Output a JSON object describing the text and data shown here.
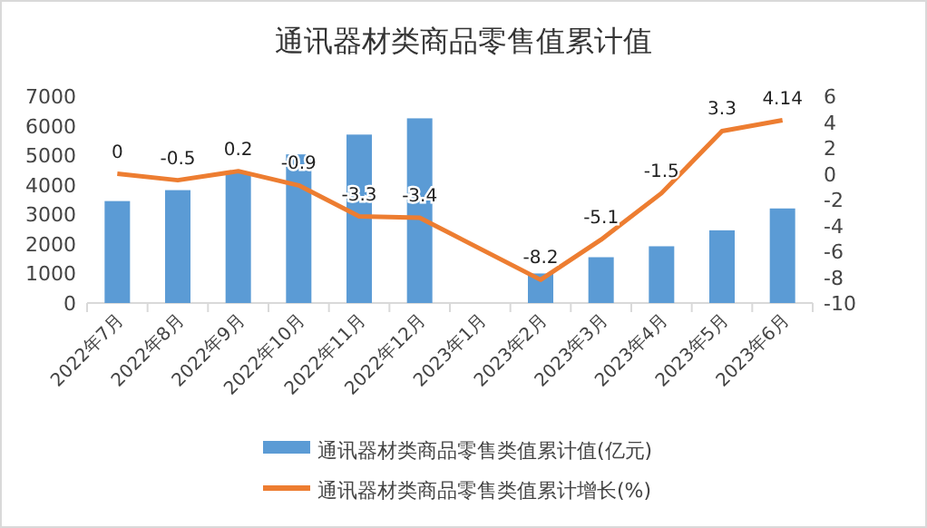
{
  "chart_data": {
    "type": "bar",
    "title": "通讯器材类商品零售值累计值",
    "categories": [
      "2022年7月",
      "2022年8月",
      "2022年9月",
      "2022年10月",
      "2022年11月",
      "2022年12月",
      "2023年1月",
      "2023年2月",
      "2023年3月",
      "2023年4月",
      "2023年5月",
      "2023年6月"
    ],
    "series": [
      {
        "name": "通讯器材类商品零售类值累计值(亿元)",
        "color": "#5b9bd5",
        "values": [
          3450,
          3820,
          4400,
          5030,
          5700,
          6250,
          null,
          1000,
          1550,
          1920,
          2460,
          3200
        ]
      },
      {
        "name": "通讯器材类商品零售类值累计增长(%)",
        "type": "line",
        "axis": "y2",
        "color": "#ed7d31",
        "values": [
          0,
          -0.5,
          0.2,
          -0.9,
          -3.3,
          -3.4,
          null,
          -8.2,
          -5.1,
          -1.5,
          3.3,
          4.14
        ],
        "data_labels": true,
        "line_style": "solid",
        "marker": "none"
      }
    ],
    "ylim": [
      0,
      7000
    ],
    "yticks": [
      0,
      1000,
      2000,
      3000,
      4000,
      5000,
      6000,
      7000
    ],
    "y2lim": [
      -10,
      6
    ],
    "y2ticks": [
      -10,
      -8,
      -6,
      -4,
      -2,
      0,
      2,
      4,
      6
    ],
    "grid": false,
    "legend": "bottom"
  }
}
